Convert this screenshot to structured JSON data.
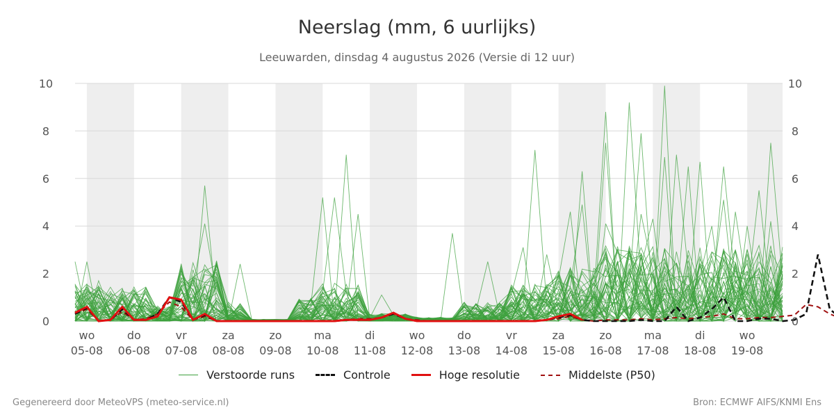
{
  "chart_data": {
    "type": "line",
    "title": "Neerslag (mm, 6 uurlijks)",
    "subtitle": "Leeuwarden, dinsdag  4 augustus 2026 (Versie di 12 uur)",
    "ylim": [
      0,
      10
    ],
    "yticks": [
      0,
      2,
      4,
      6,
      8,
      10
    ],
    "x_unit": "days since 2026-08-04",
    "xlim": [
      0.75,
      15.75
    ],
    "day_ticks": [
      {
        "x": 1,
        "day": "wo",
        "date": "05-08"
      },
      {
        "x": 2,
        "day": "do",
        "date": "06-08"
      },
      {
        "x": 3,
        "day": "vr",
        "date": "07-08"
      },
      {
        "x": 4,
        "day": "za",
        "date": "08-08"
      },
      {
        "x": 5,
        "day": "zo",
        "date": "09-08"
      },
      {
        "x": 6,
        "day": "ma",
        "date": "10-08"
      },
      {
        "x": 7,
        "day": "di",
        "date": "11-08"
      },
      {
        "x": 8,
        "day": "wo",
        "date": "12-08"
      },
      {
        "x": 9,
        "day": "do",
        "date": "13-08"
      },
      {
        "x": 10,
        "day": "vr",
        "date": "14-08"
      },
      {
        "x": 11,
        "day": "za",
        "date": "15-08"
      },
      {
        "x": 12,
        "day": "zo",
        "date": "16-08"
      },
      {
        "x": 13,
        "day": "ma",
        "date": "17-08"
      },
      {
        "x": 14,
        "day": "di",
        "date": "18-08"
      },
      {
        "x": 15,
        "day": "wo",
        "date": "19-08"
      }
    ],
    "shaded_days": [
      [
        1,
        2
      ],
      [
        3,
        4
      ],
      [
        5,
        6
      ],
      [
        7,
        8
      ],
      [
        9,
        10
      ],
      [
        11,
        12
      ],
      [
        13,
        14
      ],
      [
        15,
        15.75
      ]
    ],
    "grid": true,
    "legend_position": "bottom",
    "colors": {
      "ensemble": "#3ca03c",
      "control": "#111111",
      "hires": "#e01010",
      "p50": "#a01010",
      "shade": "#eeeeee",
      "grid": "#d8d8d8"
    },
    "series_hires": {
      "name": "Hoge resolutie",
      "values": [
        0.35,
        0.6,
        0.0,
        0.05,
        0.6,
        0.05,
        0.05,
        0.2,
        1.0,
        0.9,
        0.05,
        0.3,
        0.0,
        0.0,
        0.0,
        0.0,
        0.0,
        0.0,
        0.0,
        0.0,
        0.0,
        0.0,
        0.0,
        0.05,
        0.05,
        0.05,
        0.15,
        0.35,
        0.1,
        0.0,
        0.0,
        0.0,
        0.0,
        0.0,
        0.0,
        0.0,
        0.0,
        0.0,
        0.0,
        0.0,
        0.05,
        0.2,
        0.3,
        0.05
      ]
    },
    "series_control": {
      "name": "Controle",
      "values": [
        0.3,
        0.55,
        0.0,
        0.05,
        0.5,
        0.05,
        0.05,
        0.3,
        1.0,
        0.8,
        0.05,
        0.25,
        0.0,
        0.0,
        0.0,
        0.0,
        0.0,
        0.0,
        0.0,
        0.0,
        0.0,
        0.0,
        0.0,
        0.05,
        0.05,
        0.05,
        0.15,
        0.3,
        0.1,
        0.0,
        0.0,
        0.0,
        0.0,
        0.0,
        0.0,
        0.0,
        0.0,
        0.0,
        0.0,
        0.0,
        0.05,
        0.15,
        0.25,
        0.05,
        0.0,
        0.0,
        0.0,
        0.0,
        0.05,
        0.0,
        0.0,
        0.6,
        0.0,
        0.15,
        0.5,
        1.0,
        0.0,
        0.0,
        0.1,
        0.1,
        0.0,
        0.05,
        0.3,
        2.8,
        0.5,
        0.1,
        0.4,
        0.3,
        0.1,
        0.0,
        0.35
      ]
    },
    "series_p50": {
      "name": "Middelste (P50)",
      "values": [
        0.3,
        0.5,
        0.0,
        0.05,
        0.4,
        0.05,
        0.1,
        0.3,
        0.8,
        0.6,
        0.05,
        0.2,
        0.0,
        0.0,
        0.0,
        0.0,
        0.0,
        0.0,
        0.0,
        0.0,
        0.0,
        0.0,
        0.0,
        0.05,
        0.1,
        0.1,
        0.15,
        0.3,
        0.1,
        0.05,
        0.0,
        0.0,
        0.0,
        0.0,
        0.0,
        0.0,
        0.0,
        0.0,
        0.0,
        0.0,
        0.05,
        0.1,
        0.2,
        0.05,
        0.0,
        0.05,
        0.05,
        0.05,
        0.1,
        0.05,
        0.1,
        0.15,
        0.1,
        0.15,
        0.2,
        0.3,
        0.1,
        0.1,
        0.15,
        0.15,
        0.2,
        0.25,
        0.7,
        0.6,
        0.3,
        0.1,
        0.3,
        0.25,
        0.15,
        0.1,
        0.25
      ]
    },
    "ensemble_name": "Verstoorde runs",
    "ensemble_count": 50,
    "ensemble_highlights": [
      [
        0.75,
        2.5
      ],
      [
        1.0,
        2.5
      ],
      [
        1.25,
        1.7
      ],
      [
        3.5,
        5.7
      ],
      [
        3.5,
        4.1
      ],
      [
        3.75,
        2.5
      ],
      [
        4.25,
        2.4
      ],
      [
        6.0,
        5.2
      ],
      [
        6.25,
        5.2
      ],
      [
        6.5,
        7.0
      ],
      [
        6.75,
        4.5
      ],
      [
        7.25,
        1.1
      ],
      [
        8.75,
        3.7
      ],
      [
        9.5,
        2.5
      ],
      [
        10.25,
        3.1
      ],
      [
        10.5,
        7.2
      ],
      [
        10.75,
        2.8
      ],
      [
        11.25,
        4.6
      ],
      [
        11.5,
        4.9
      ],
      [
        11.5,
        6.3
      ],
      [
        12.0,
        8.8
      ],
      [
        12.0,
        7.5
      ],
      [
        12.5,
        9.2
      ],
      [
        12.75,
        7.9
      ],
      [
        13.25,
        9.9
      ],
      [
        13.25,
        6.9
      ],
      [
        13.5,
        7.0
      ],
      [
        13.75,
        6.5
      ],
      [
        14.0,
        6.7
      ],
      [
        14.5,
        6.5
      ],
      [
        14.5,
        5.1
      ],
      [
        14.75,
        4.6
      ],
      [
        15.25,
        5.5
      ],
      [
        15.5,
        7.5
      ],
      [
        15.5,
        4.2
      ],
      [
        12.0,
        4.1
      ],
      [
        12.75,
        4.5
      ],
      [
        13.0,
        4.3
      ],
      [
        14.25,
        4.0
      ],
      [
        15.0,
        4.0
      ]
    ]
  },
  "legend": {
    "ensemble": "Verstoorde runs",
    "control": "Controle",
    "hires": "Hoge resolutie",
    "p50": "Middelste (P50)"
  },
  "footer": {
    "left": "Gegenereerd door MeteoVPS (meteo-service.nl)",
    "right": "Bron: ECMWF AIFS/KNMI Ens"
  }
}
